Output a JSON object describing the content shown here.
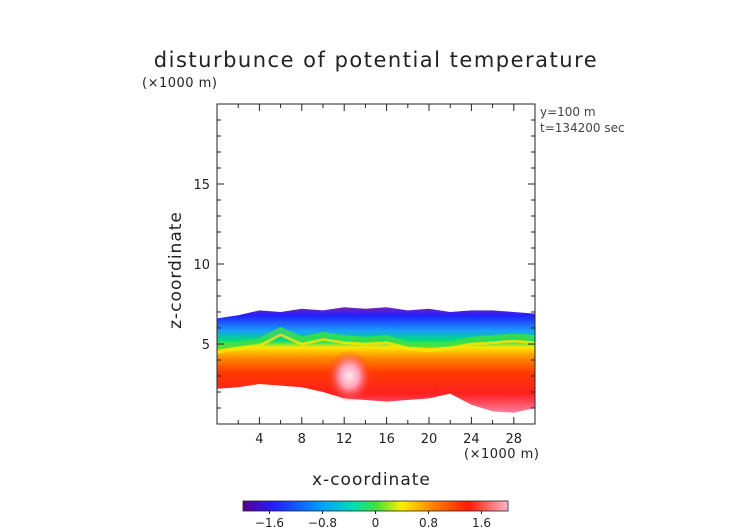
{
  "chart_data": {
    "type": "heatmap",
    "title": "disturbunce of potential temperature",
    "xlabel": "x-coordinate",
    "ylabel": "z-coordinate",
    "x_unit_label": "(×1000 m)",
    "y_unit_label": "(×1000 m)",
    "annotations": [
      "y=100 m",
      "t=134200 sec"
    ],
    "xlim": [
      0,
      30
    ],
    "ylim": [
      0,
      20
    ],
    "x_ticks": [
      4,
      8,
      12,
      16,
      20,
      24,
      28
    ],
    "x_tick_labels": [
      "4",
      "8",
      "12",
      "16",
      "20",
      "24",
      "28"
    ],
    "y_ticks": [
      5,
      10,
      15
    ],
    "y_tick_labels": [
      "5",
      "10",
      "15"
    ],
    "colorbar": {
      "range": [
        -2.0,
        2.0
      ],
      "ticks": [
        -1.6,
        -0.8,
        0,
        0.8,
        1.6
      ],
      "tick_labels": [
        "−1.6",
        "−0.8",
        "0",
        "0.8",
        "1.6"
      ],
      "colors": [
        "#6a00a8",
        "#1c1cff",
        "#00a0ff",
        "#00e070",
        "#ffee00",
        "#ff8000",
        "#ff1a00",
        "#ff90b0"
      ]
    },
    "field_shape": {
      "description_x": [
        0,
        2,
        4,
        6,
        8,
        10,
        12,
        14,
        16,
        18,
        20,
        22,
        24,
        26,
        28,
        30
      ],
      "top_z": [
        6.6,
        6.8,
        7.1,
        7.0,
        7.2,
        7.1,
        7.3,
        7.2,
        7.3,
        7.1,
        7.2,
        7.0,
        7.1,
        7.1,
        7.0,
        6.9
      ],
      "bottom_z": [
        2.2,
        2.3,
        2.5,
        2.4,
        2.3,
        2.0,
        1.6,
        1.5,
        1.4,
        1.5,
        1.6,
        1.9,
        1.2,
        0.8,
        0.7,
        1.0
      ],
      "zero_z": [
        4.8,
        5.0,
        5.2,
        5.9,
        5.3,
        5.6,
        5.4,
        5.3,
        5.4,
        5.0,
        4.9,
        5.0,
        5.3,
        5.4,
        5.5,
        5.4
      ],
      "warm_peak": {
        "x": 12.5,
        "z": 3.0,
        "value": 2.0
      }
    }
  }
}
